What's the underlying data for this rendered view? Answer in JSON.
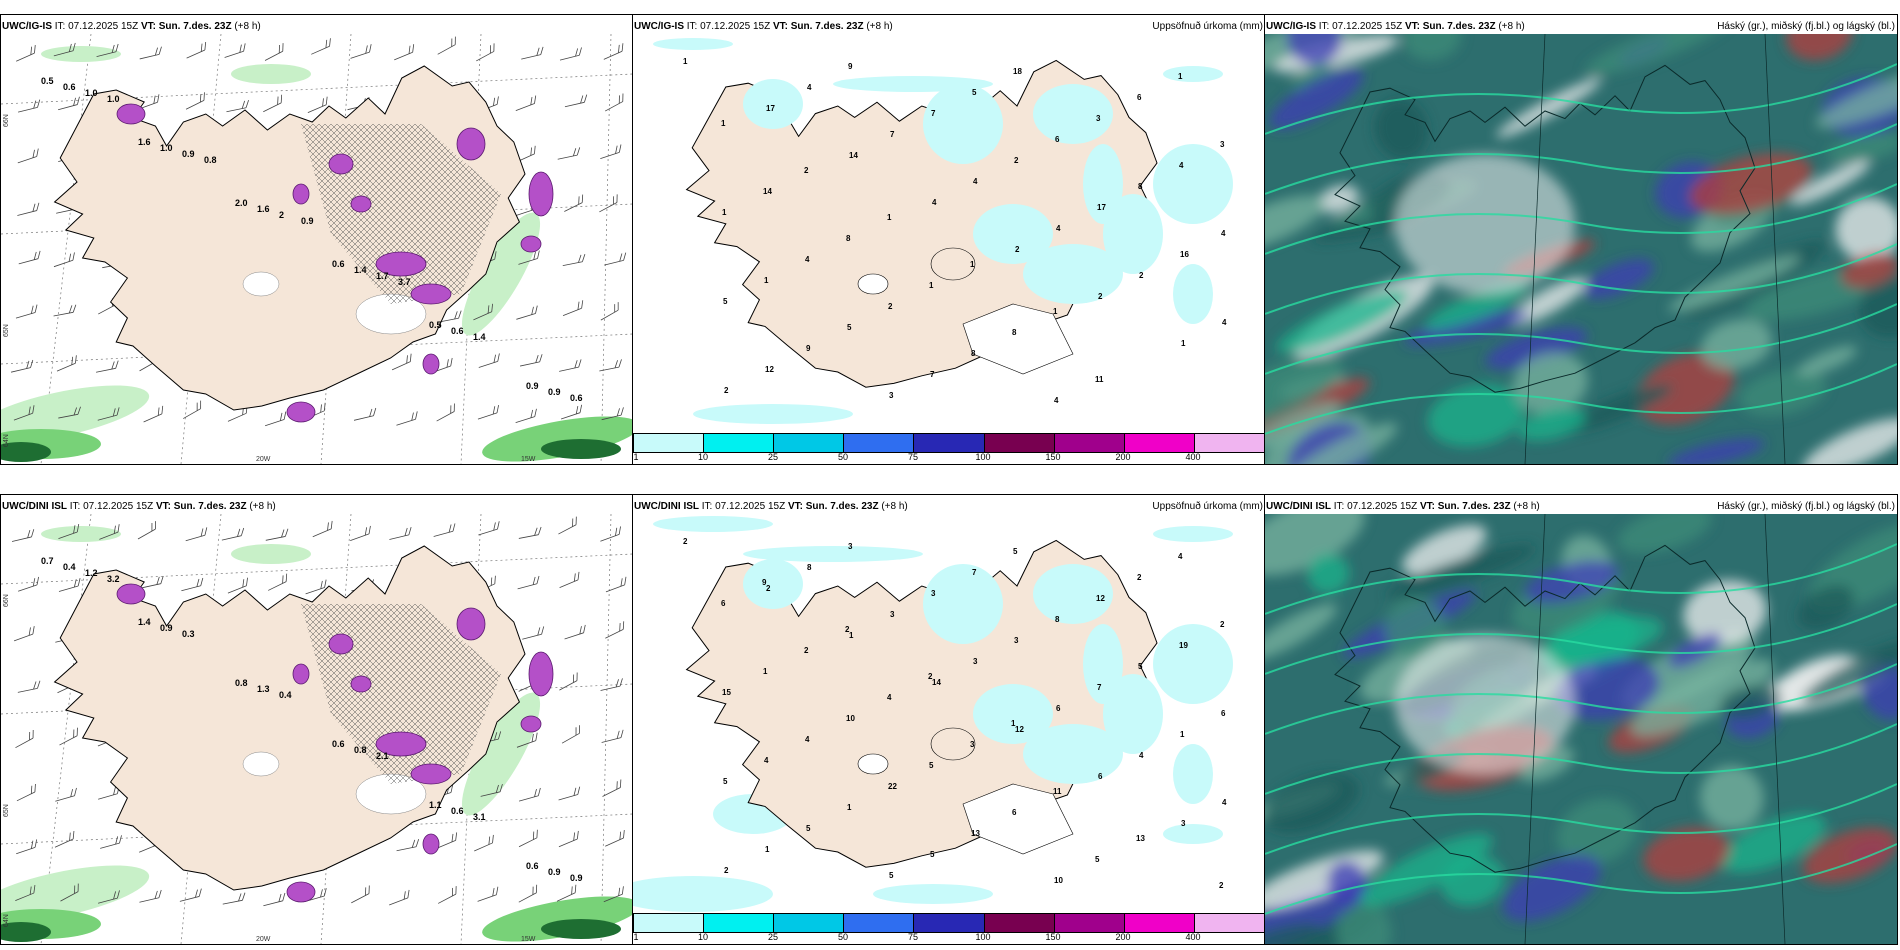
{
  "rows": [
    {
      "model": "UWC/IG-IS",
      "it_label": "IT:",
      "it_value": "07.12.2025 15Z",
      "vt_label": "VT:",
      "vt_value": "Sun. 7.des. 23Z",
      "lead": "(+8 h)",
      "precip_title": "Uppsöfnuð úrkoma (mm)",
      "cloud_title": "Háský (gr.), miðský (fj.bl.) og lágský (bl.)"
    },
    {
      "model": "UWC/DINI ISL",
      "it_label": "IT:",
      "it_value": "07.12.2025 15Z",
      "vt_label": "VT:",
      "vt_value": "Sun. 7.des. 23Z",
      "lead": "(+8 h)",
      "precip_title": "Uppsöfnuð úrkoma (mm)",
      "cloud_title": "Háský (gr.), miðský (fj.bl.) og lágský (bl.)"
    }
  ],
  "axis_labels": {
    "lat66": "66N",
    "lat65": "65N",
    "lat64": "64N",
    "lon20": "20W",
    "lon15": "15W"
  },
  "precip_legend": {
    "ticks": [
      "1",
      "10",
      "25",
      "50",
      "75",
      "100",
      "150",
      "200",
      "400"
    ],
    "colors": [
      "#c8fafa",
      "#00f0f0",
      "#00c8e6",
      "#2f6ef0",
      "#2828b4",
      "#780050",
      "#a0008c",
      "#f000c8",
      "#f0b4f0"
    ]
  },
  "precip_values_top": [
    "1",
    "17",
    "14",
    "4",
    "2",
    "2",
    "1",
    "2",
    "4",
    "7",
    "4",
    "4",
    "2",
    "4",
    "12",
    "9",
    "7",
    "2",
    "17",
    "16",
    "5",
    "9",
    "3",
    "5",
    "6",
    "8",
    "4",
    "1",
    "5",
    "7",
    "18",
    "3",
    "4",
    "1",
    "4",
    "2",
    "8",
    "4",
    "6",
    "3",
    "14",
    "8",
    "1",
    "8",
    "11",
    "1",
    "1",
    "2",
    "1",
    "1",
    "1"
  ],
  "precip_values_bottom": [
    "2",
    "2",
    "1",
    "14",
    "12",
    "6",
    "3",
    "2",
    "8",
    "3",
    "3",
    "6",
    "4",
    "4",
    "1",
    "3",
    "3",
    "3",
    "7",
    "1",
    "5",
    "5",
    "5",
    "7",
    "8",
    "5",
    "6",
    "4",
    "1",
    "5",
    "5",
    "12",
    "19",
    "15",
    "4",
    "22",
    "13",
    "10",
    "2",
    "2",
    "1",
    "10",
    "5",
    "6",
    "5",
    "4",
    "6",
    "2",
    "4",
    "3",
    "11",
    "13",
    "2",
    "9",
    "2",
    "2",
    "1"
  ],
  "wind_values_top": [
    "0.5",
    "1.6",
    "2.0",
    "0.6",
    "0.5",
    "0.9",
    "0.6",
    "1.0",
    "1.6",
    "1.4",
    "0.6",
    "0.9",
    "1.0",
    "0.9",
    "2",
    "1.7",
    "1.4",
    "0.6",
    "1.0",
    "0.8",
    "0.9",
    "3.7"
  ],
  "wind_values_bottom": [
    "0.7",
    "1.4",
    "0.8",
    "0.6",
    "1.1",
    "0.6",
    "0.4",
    "0.9",
    "1.3",
    "0.8",
    "0.6",
    "0.9",
    "1.2",
    "0.3",
    "0.4",
    "2.1",
    "3.1",
    "0.9",
    "3.2"
  ],
  "colors": {
    "land": "#f5e6d8",
    "land_dark": "#e8d7c4",
    "sea": "#ffffff",
    "snow_purple": "#b450c8",
    "green_light": "#c8f0c8",
    "green_mid": "#78d278",
    "green_dark": "#1e6e32",
    "cyan_light": "#c8fafa",
    "cloud_base": "#2d6e6e",
    "cloud_teal": "#19b48c",
    "cloud_white": "#f0f0f0",
    "cloud_blue": "#3c3cb4",
    "cloud_red": "#b43c3c"
  }
}
